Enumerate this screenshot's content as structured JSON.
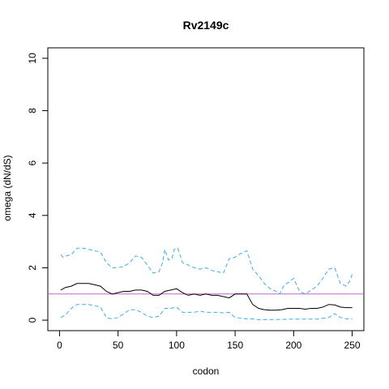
{
  "chart_data": {
    "type": "line",
    "title": "Rv2149c",
    "xlabel": "codon",
    "ylabel": "omega (dN/dS)",
    "xlim": [
      -10,
      260
    ],
    "ylim": [
      -0.4,
      10.4
    ],
    "xticks": [
      0,
      50,
      100,
      150,
      200,
      250
    ],
    "yticks": [
      0,
      2,
      4,
      6,
      8,
      10
    ],
    "grid": false,
    "reference_line": {
      "y": 1,
      "color": "#c266c2"
    },
    "series": [
      {
        "style": "solid",
        "color": "#000000",
        "points": [
          [
            1,
            1.15
          ],
          [
            5,
            1.25
          ],
          [
            10,
            1.3
          ],
          [
            15,
            1.4
          ],
          [
            20,
            1.4
          ],
          [
            25,
            1.4
          ],
          [
            30,
            1.35
          ],
          [
            35,
            1.3
          ],
          [
            40,
            1.1
          ],
          [
            45,
            1.0
          ],
          [
            50,
            1.05
          ],
          [
            55,
            1.1
          ],
          [
            60,
            1.1
          ],
          [
            65,
            1.15
          ],
          [
            70,
            1.15
          ],
          [
            75,
            1.1
          ],
          [
            80,
            0.95
          ],
          [
            85,
            0.95
          ],
          [
            90,
            1.1
          ],
          [
            95,
            1.15
          ],
          [
            100,
            1.2
          ],
          [
            105,
            1.05
          ],
          [
            110,
            0.95
          ],
          [
            115,
            1.0
          ],
          [
            120,
            0.95
          ],
          [
            125,
            1.0
          ],
          [
            130,
            0.95
          ],
          [
            135,
            0.95
          ],
          [
            140,
            0.9
          ],
          [
            145,
            0.85
          ],
          [
            150,
            1.0
          ],
          [
            155,
            1.0
          ],
          [
            160,
            1.0
          ],
          [
            165,
            0.6
          ],
          [
            170,
            0.45
          ],
          [
            175,
            0.4
          ],
          [
            180,
            0.38
          ],
          [
            185,
            0.38
          ],
          [
            190,
            0.4
          ],
          [
            195,
            0.45
          ],
          [
            200,
            0.45
          ],
          [
            205,
            0.45
          ],
          [
            210,
            0.42
          ],
          [
            215,
            0.45
          ],
          [
            220,
            0.45
          ],
          [
            225,
            0.5
          ],
          [
            230,
            0.6
          ],
          [
            235,
            0.58
          ],
          [
            240,
            0.5
          ],
          [
            245,
            0.48
          ],
          [
            250,
            0.48
          ]
        ]
      },
      {
        "style": "dashed",
        "color": "#3daee9",
        "points": [
          [
            1,
            2.5
          ],
          [
            3,
            2.4
          ],
          [
            5,
            2.45
          ],
          [
            10,
            2.5
          ],
          [
            15,
            2.75
          ],
          [
            20,
            2.75
          ],
          [
            25,
            2.7
          ],
          [
            30,
            2.65
          ],
          [
            35,
            2.6
          ],
          [
            40,
            2.2
          ],
          [
            45,
            2.0
          ],
          [
            50,
            2.0
          ],
          [
            55,
            2.05
          ],
          [
            60,
            2.2
          ],
          [
            65,
            2.45
          ],
          [
            70,
            2.4
          ],
          [
            75,
            2.1
          ],
          [
            80,
            1.8
          ],
          [
            85,
            1.85
          ],
          [
            88,
            2.2
          ],
          [
            90,
            2.7
          ],
          [
            93,
            2.3
          ],
          [
            96,
            2.35
          ],
          [
            98,
            2.7
          ],
          [
            101,
            2.75
          ],
          [
            105,
            2.2
          ],
          [
            110,
            2.1
          ],
          [
            115,
            2.0
          ],
          [
            120,
            1.95
          ],
          [
            125,
            2.0
          ],
          [
            130,
            1.9
          ],
          [
            135,
            1.85
          ],
          [
            140,
            1.8
          ],
          [
            145,
            2.35
          ],
          [
            150,
            2.4
          ],
          [
            155,
            2.55
          ],
          [
            160,
            2.65
          ],
          [
            165,
            1.95
          ],
          [
            170,
            1.7
          ],
          [
            175,
            1.4
          ],
          [
            180,
            1.2
          ],
          [
            185,
            1.1
          ],
          [
            188,
            1.0
          ],
          [
            192,
            1.35
          ],
          [
            196,
            1.45
          ],
          [
            200,
            1.6
          ],
          [
            205,
            1.1
          ],
          [
            210,
            1.0
          ],
          [
            215,
            1.15
          ],
          [
            220,
            1.3
          ],
          [
            225,
            1.6
          ],
          [
            230,
            1.95
          ],
          [
            235,
            2.0
          ],
          [
            240,
            1.4
          ],
          [
            245,
            1.3
          ],
          [
            248,
            1.5
          ],
          [
            250,
            1.75
          ]
        ]
      },
      {
        "style": "dashed",
        "color": "#3daee9",
        "points": [
          [
            1,
            0.1
          ],
          [
            5,
            0.2
          ],
          [
            10,
            0.45
          ],
          [
            15,
            0.6
          ],
          [
            20,
            0.6
          ],
          [
            25,
            0.6
          ],
          [
            30,
            0.55
          ],
          [
            35,
            0.5
          ],
          [
            40,
            0.1
          ],
          [
            45,
            0.05
          ],
          [
            50,
            0.1
          ],
          [
            55,
            0.25
          ],
          [
            60,
            0.4
          ],
          [
            65,
            0.4
          ],
          [
            70,
            0.3
          ],
          [
            75,
            0.15
          ],
          [
            80,
            0.1
          ],
          [
            85,
            0.15
          ],
          [
            90,
            0.45
          ],
          [
            95,
            0.45
          ],
          [
            100,
            0.5
          ],
          [
            105,
            0.3
          ],
          [
            110,
            0.3
          ],
          [
            115,
            0.3
          ],
          [
            120,
            0.35
          ],
          [
            125,
            0.3
          ],
          [
            130,
            0.3
          ],
          [
            135,
            0.3
          ],
          [
            140,
            0.28
          ],
          [
            145,
            0.3
          ],
          [
            150,
            0.1
          ],
          [
            155,
            0.08
          ],
          [
            160,
            0.05
          ],
          [
            165,
            0.05
          ],
          [
            170,
            0.02
          ],
          [
            180,
            0.02
          ],
          [
            190,
            0.03
          ],
          [
            200,
            0.04
          ],
          [
            210,
            0.04
          ],
          [
            220,
            0.04
          ],
          [
            230,
            0.1
          ],
          [
            235,
            0.25
          ],
          [
            240,
            0.1
          ],
          [
            245,
            0.05
          ],
          [
            250,
            0.05
          ]
        ]
      }
    ]
  }
}
